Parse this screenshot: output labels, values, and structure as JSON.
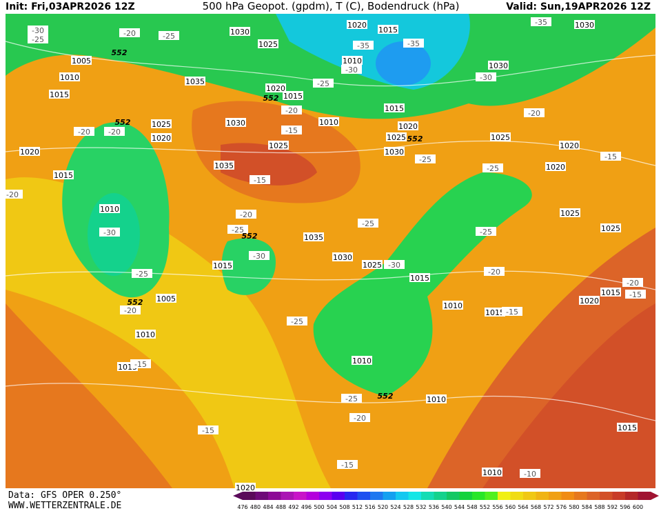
{
  "header": {
    "init": "Init: Fri,03APR2026 12Z",
    "title": "500 hPa Geopot. (gpdm), T (C), Bodendruck (hPa)",
    "valid": "Valid: Sun,19APR2026 12Z"
  },
  "footer": {
    "source": "Data: GFS OPER 0.250°",
    "website": "WWW.WETTERZENTRALE.DE"
  },
  "pressure_labels": [
    1030,
    1020,
    1015,
    1025,
    1005,
    1010,
    1015,
    1035,
    1020,
    1015,
    1010,
    1030,
    1030,
    1015,
    1025,
    1020,
    1030,
    1010,
    1020,
    1025,
    1025,
    1030,
    1025,
    1020,
    1020,
    1020,
    1015,
    1035,
    1010,
    1035,
    1030,
    1025,
    1015,
    1015,
    1025,
    1025,
    1005,
    1010,
    1015,
    1020,
    1015,
    1010,
    1015,
    1010,
    1010,
    1015,
    1010,
    1020
  ],
  "temperature_labels": [
    -30,
    -25,
    -20,
    -25,
    -35,
    -30,
    -35,
    -25,
    -30,
    -35,
    -20,
    -15,
    -20,
    -20,
    -15,
    -20,
    -25,
    -25,
    -15,
    -20,
    -30,
    -25,
    -25,
    -25,
    -30,
    -30,
    -20,
    -25,
    -20,
    -25,
    -15,
    -20,
    -15,
    -15,
    -25,
    -20,
    -15,
    -15,
    -10,
    -20
  ],
  "height_labels": [
    552,
    552,
    552,
    552,
    552,
    552,
    552
  ],
  "colorbar": {
    "values": [
      476,
      480,
      484,
      488,
      492,
      496,
      500,
      504,
      508,
      512,
      516,
      520,
      524,
      528,
      532,
      536,
      540,
      544,
      548,
      552,
      556,
      560,
      564,
      568,
      572,
      576,
      580,
      584,
      588,
      592,
      596,
      600
    ],
    "colors": [
      "#5a0a5a",
      "#6e0a78",
      "#8c0a96",
      "#aa14b4",
      "#c814c8",
      "#b400dc",
      "#8c00f0",
      "#5a00f0",
      "#2828f0",
      "#1e50f0",
      "#1e78f0",
      "#14a0f0",
      "#14c8f0",
      "#14e6e6",
      "#14dcb4",
      "#14d28c",
      "#14c864",
      "#14d23c",
      "#28e628",
      "#50f01e",
      "#f0f014",
      "#f0dc14",
      "#f0c814",
      "#f0b414",
      "#f0a014",
      "#f08c14",
      "#e6781e",
      "#dc6428",
      "#d25028",
      "#c83c28",
      "#b42828",
      "#a01432"
    ]
  }
}
